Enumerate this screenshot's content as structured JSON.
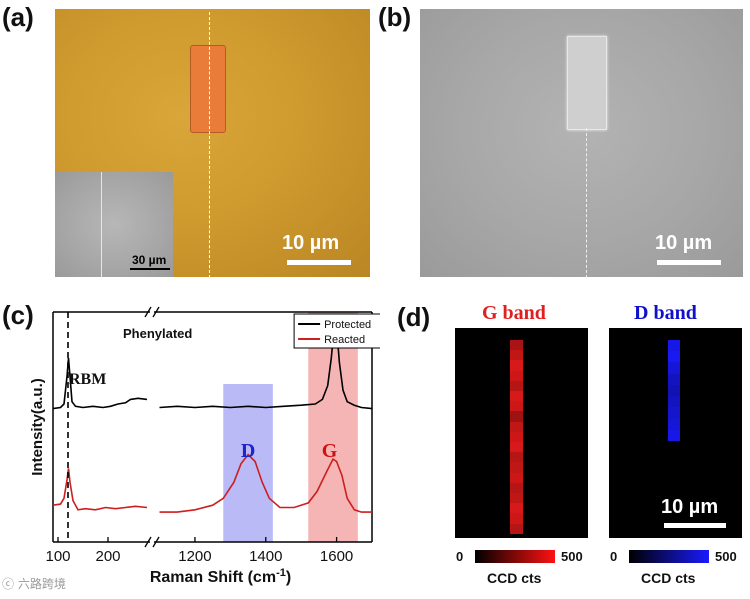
{
  "panels": {
    "a": {
      "label": "(a)",
      "scale": "10 µm",
      "inset_scale": "30 µm"
    },
    "b": {
      "label": "(b)",
      "scale": "10 µm"
    },
    "c": {
      "label": "(c)"
    },
    "d": {
      "label": "(d)",
      "scale": "10 µm"
    }
  },
  "chart_data": {
    "type": "line",
    "xlabel": "Raman Shift (cm",
    "xlabel_sup": "-1",
    "xlabel_close": ")",
    "ylabel": "Intensity(a.u.)",
    "x_ticks": [
      "100",
      "200",
      "1200",
      "1400",
      "1600"
    ],
    "axis_break": true,
    "segments": [
      {
        "xlim": [
          90,
          280
        ]
      },
      {
        "xlim": [
          1090,
          1700
        ]
      }
    ],
    "annotations": {
      "sample": "Phenylated",
      "rbm": "RBM",
      "d_band": "D",
      "g_band": "G",
      "rbm_line_x": 120,
      "d_region": [
        1280,
        1420
      ],
      "g_region": [
        1520,
        1660
      ]
    },
    "legend": {
      "placement": "top-right"
    },
    "series": [
      {
        "name": "Protected",
        "color": "#000000",
        "points": [
          [
            90,
            0.58
          ],
          [
            105,
            0.585
          ],
          [
            112,
            0.6
          ],
          [
            118,
            0.72
          ],
          [
            121,
            0.8
          ],
          [
            124,
            0.72
          ],
          [
            128,
            0.61
          ],
          [
            135,
            0.59
          ],
          [
            150,
            0.585
          ],
          [
            170,
            0.59
          ],
          [
            190,
            0.585
          ],
          [
            205,
            0.59
          ],
          [
            220,
            0.6
          ],
          [
            235,
            0.605
          ],
          [
            245,
            0.62
          ],
          [
            260,
            0.625
          ],
          [
            278,
            0.62
          ],
          [
            1100,
            0.585
          ],
          [
            1150,
            0.59
          ],
          [
            1200,
            0.585
          ],
          [
            1250,
            0.59
          ],
          [
            1300,
            0.585
          ],
          [
            1350,
            0.59
          ],
          [
            1400,
            0.585
          ],
          [
            1450,
            0.59
          ],
          [
            1500,
            0.595
          ],
          [
            1540,
            0.6
          ],
          [
            1560,
            0.62
          ],
          [
            1575,
            0.68
          ],
          [
            1585,
            0.8
          ],
          [
            1592,
            0.92
          ],
          [
            1596,
            0.97
          ],
          [
            1600,
            0.93
          ],
          [
            1608,
            0.78
          ],
          [
            1618,
            0.66
          ],
          [
            1630,
            0.61
          ],
          [
            1650,
            0.595
          ],
          [
            1670,
            0.585
          ],
          [
            1700,
            0.58
          ]
        ]
      },
      {
        "name": "Reacted",
        "color": "#cc1f1f",
        "points": [
          [
            90,
            0.16
          ],
          [
            105,
            0.165
          ],
          [
            112,
            0.19
          ],
          [
            118,
            0.27
          ],
          [
            121,
            0.32
          ],
          [
            124,
            0.26
          ],
          [
            130,
            0.18
          ],
          [
            140,
            0.14
          ],
          [
            155,
            0.145
          ],
          [
            175,
            0.14
          ],
          [
            195,
            0.15
          ],
          [
            215,
            0.145
          ],
          [
            235,
            0.15
          ],
          [
            255,
            0.155
          ],
          [
            278,
            0.15
          ],
          [
            1100,
            0.13
          ],
          [
            1150,
            0.13
          ],
          [
            1200,
            0.14
          ],
          [
            1250,
            0.16
          ],
          [
            1280,
            0.19
          ],
          [
            1310,
            0.26
          ],
          [
            1330,
            0.34
          ],
          [
            1350,
            0.38
          ],
          [
            1370,
            0.35
          ],
          [
            1390,
            0.26
          ],
          [
            1410,
            0.19
          ],
          [
            1440,
            0.15
          ],
          [
            1480,
            0.15
          ],
          [
            1520,
            0.17
          ],
          [
            1545,
            0.22
          ],
          [
            1570,
            0.3
          ],
          [
            1590,
            0.36
          ],
          [
            1600,
            0.35
          ],
          [
            1615,
            0.29
          ],
          [
            1630,
            0.19
          ],
          [
            1650,
            0.14
          ],
          [
            1670,
            0.13
          ],
          [
            1700,
            0.13
          ]
        ]
      }
    ]
  },
  "maps": {
    "g": {
      "title": "G band",
      "title_color": "#e02020",
      "stripe_color": "#e31a1a",
      "cbar_color": "#ff1111",
      "cbar_min": "0",
      "cbar_max": "500",
      "cbar_label": "CCD cts",
      "stripe_levels": [
        0.75,
        0.85,
        0.95,
        0.9,
        0.8,
        0.95,
        0.9,
        0.7,
        0.85,
        0.9,
        0.95,
        0.8,
        0.85,
        0.9,
        0.8,
        0.85,
        0.95,
        0.9,
        0.8
      ]
    },
    "d": {
      "title": "D band",
      "title_color": "#1111cc",
      "stripe_color": "#1a1aff",
      "cbar_color": "#1a1aff",
      "cbar_min": "0",
      "cbar_max": "500",
      "cbar_label": "CCD cts",
      "stripe_levels": [
        0.9,
        0.95,
        0.85,
        0.75,
        0.7,
        0.75,
        0.8,
        0.85,
        0.9
      ]
    }
  },
  "watermark": "ⓒ 六路跨境"
}
